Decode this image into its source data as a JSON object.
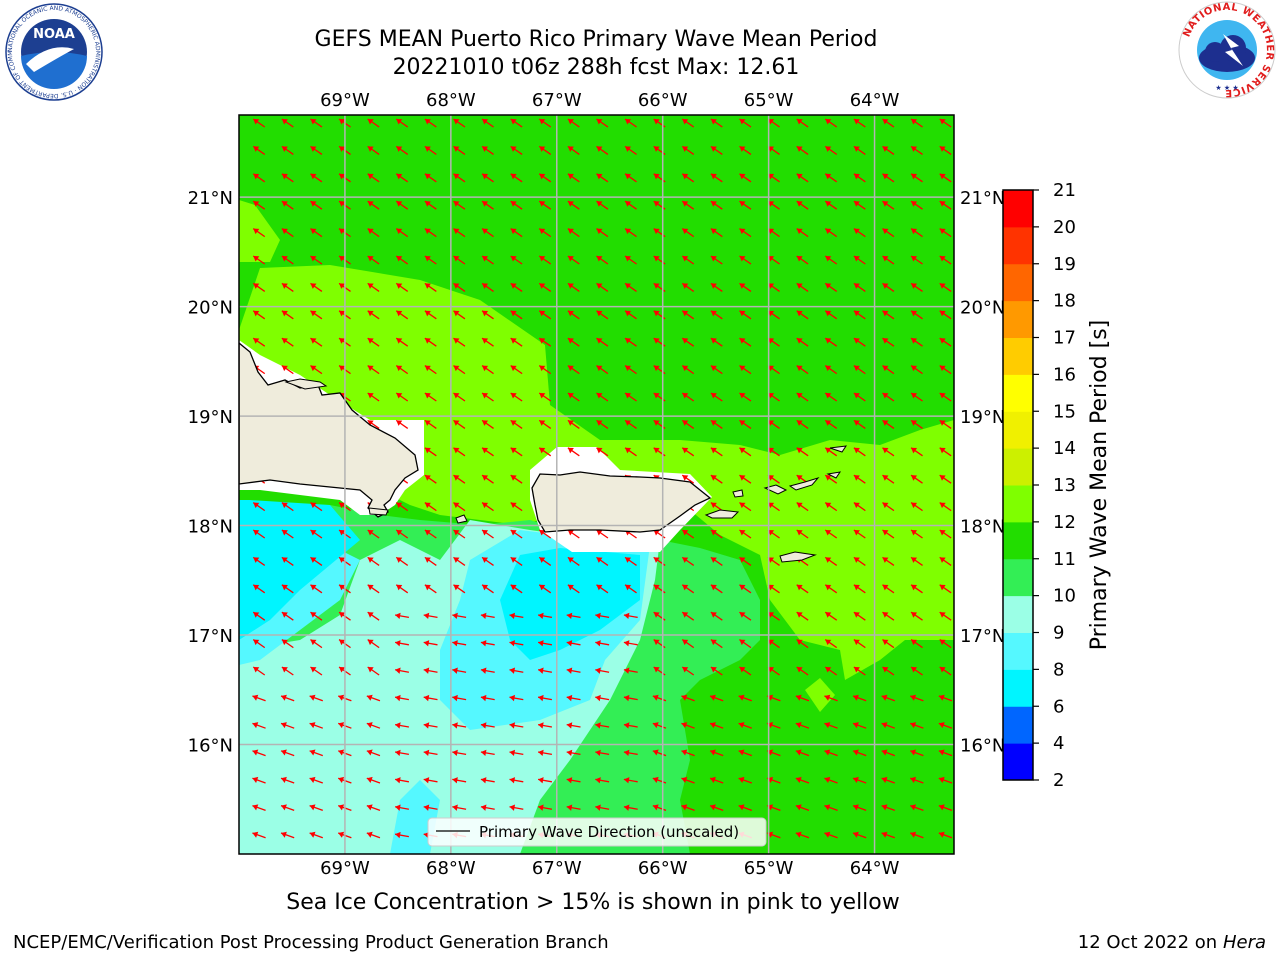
{
  "title": {
    "line1": "GEFS MEAN Puerto Rico Primary Wave Mean Period",
    "line2": "20221010 t06z 288h fcst   Max: 12.61"
  },
  "axes": {
    "lon_labels": [
      "69°W",
      "68°W",
      "67°W",
      "66°W",
      "65°W",
      "64°W"
    ],
    "lon_values": [
      -69,
      -68,
      -67,
      -66,
      -65,
      -64
    ],
    "lat_labels": [
      "21°N",
      "20°N",
      "19°N",
      "18°N",
      "17°N",
      "16°N"
    ],
    "lat_values": [
      21,
      20,
      19,
      18,
      17,
      16
    ],
    "lon_range": [
      -70.0,
      -63.25
    ],
    "lat_range": [
      15.0,
      21.75
    ],
    "grid": true
  },
  "legend": {
    "label": "Primary Wave Direction (unscaled)"
  },
  "colorbar": {
    "label": "Primary Wave Mean Period [s]",
    "ticks": [
      "2",
      "4",
      "6",
      "8",
      "9",
      "10",
      "11",
      "12",
      "13",
      "14",
      "15",
      "16",
      "17",
      "18",
      "19",
      "20",
      "21"
    ],
    "colors": [
      "#0000ff",
      "#0066ff",
      "#00f5ff",
      "#55f8ff",
      "#9bffe6",
      "#33ee55",
      "#22dd00",
      "#7fff00",
      "#ccf000",
      "#f0f000",
      "#ffff00",
      "#ffcc00",
      "#ff9900",
      "#ff6600",
      "#ff3300",
      "#ff0000"
    ]
  },
  "colors": {
    "arrow": "#ff0000",
    "land": "#efecdc",
    "grid": "#b4b4b4"
  },
  "bottom_note": "Sea Ice Concentration > 15% is shown in pink to yellow",
  "credit": {
    "left": "NCEP/EMC/Verification Post Processing Product Generation Branch",
    "right_date": "12 Oct 2022 on ",
    "right_machine": "Hera"
  },
  "logos": {
    "noaa_text": "NOAA",
    "noaa_ring": "NATIONAL OCEANIC AND ATMOSPHERIC ADMINISTRATION · U.S. DEPARTMENT OF COMMERCE ·",
    "nws_ring": "NATIONAL WEATHER SERVICE"
  }
}
